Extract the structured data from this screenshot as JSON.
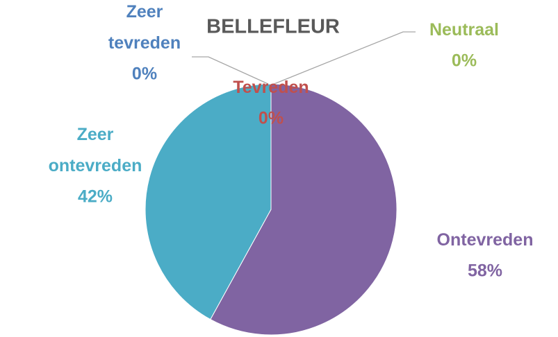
{
  "chart_data": {
    "type": "pie",
    "title": "BELLEFLEUR",
    "categories": [
      "Zeer tevreden",
      "Tevreden",
      "Neutraal",
      "Ontevreden",
      "Zeer ontevreden"
    ],
    "values": [
      0,
      0,
      0,
      58,
      42
    ],
    "value_labels": [
      "0%",
      "0%",
      "0%",
      "58%",
      "42%"
    ],
    "colors": [
      "#4f81bd",
      "#c0504d",
      "#9bbb59",
      "#8064a2",
      "#4bacc6"
    ]
  }
}
